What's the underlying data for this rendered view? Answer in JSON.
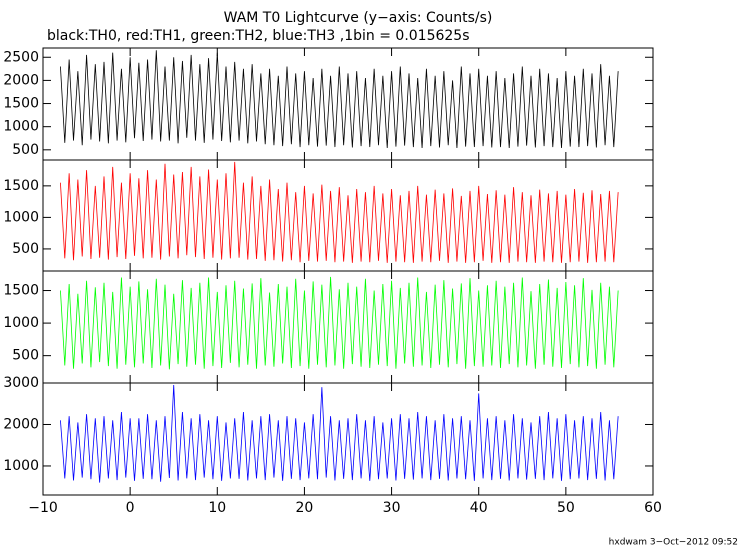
{
  "chart_data": {
    "type": "line",
    "title": "WAM T0 Lightcurve (y−axis: Counts/s)",
    "subtitle": "black:TH0, red:TH1, green:TH2, blue:TH3 ,1bin = 0.015625s",
    "footer": "hxdwam  3−Oct−2012 09:52",
    "xlim": [
      -10,
      60
    ],
    "xticks": [
      {
        "value": -10,
        "label": "−10"
      },
      0,
      10,
      20,
      30,
      40,
      50,
      60
    ],
    "x": [
      -8,
      -7.5,
      -7,
      -6.5,
      -6,
      -5.5,
      -5,
      -4.5,
      -4,
      -3.5,
      -3,
      -2.5,
      -2,
      -1.5,
      -1,
      -0.5,
      0,
      0.5,
      1,
      1.5,
      2,
      2.5,
      3,
      3.5,
      4,
      4.5,
      5,
      5.5,
      6,
      6.5,
      7,
      7.5,
      8,
      8.5,
      9,
      9.5,
      10,
      10.5,
      11,
      11.5,
      12,
      12.5,
      13,
      13.5,
      14,
      14.5,
      15,
      15.5,
      16,
      16.5,
      17,
      17.5,
      18,
      18.5,
      19,
      19.5,
      20,
      20.5,
      21,
      21.5,
      22,
      22.5,
      23,
      23.5,
      24,
      24.5,
      25,
      25.5,
      26,
      26.5,
      27,
      27.5,
      28,
      28.5,
      29,
      29.5,
      30,
      30.5,
      31,
      31.5,
      32,
      32.5,
      33,
      33.5,
      34,
      34.5,
      35,
      35.5,
      36,
      36.5,
      37,
      37.5,
      38,
      38.5,
      39,
      39.5,
      40,
      40.5,
      41,
      41.5,
      42,
      42.5,
      43,
      43.5,
      44,
      44.5,
      45,
      45.5,
      46,
      46.5,
      47,
      47.5,
      48,
      48.5,
      49,
      49.5,
      50,
      50.5,
      51,
      51.5,
      52,
      52.5,
      53,
      53.5,
      54,
      54.5,
      55,
      55.5,
      56
    ],
    "series": [
      {
        "color": "#000000",
        "ylim": [
          280,
          2700
        ],
        "yticks": [
          500,
          1000,
          1500,
          2000,
          2500
        ],
        "values": [
          2300,
          650,
          2450,
          700,
          2200,
          600,
          2550,
          720,
          2350,
          680,
          2400,
          640,
          2600,
          700,
          2250,
          660,
          2500,
          750,
          2380,
          690,
          2450,
          720,
          2650,
          680,
          2300,
          700,
          2500,
          640,
          2420,
          760,
          2550,
          700,
          2350,
          650,
          2480,
          720,
          2600,
          690,
          2300,
          660,
          2400,
          700,
          2250,
          640,
          2350,
          680,
          2150,
          620,
          2250,
          600,
          2100,
          580,
          2300,
          620,
          2150,
          560,
          2200,
          600,
          2050,
          570,
          2250,
          590,
          2100,
          560,
          2300,
          600,
          2150,
          550,
          2200,
          580,
          2050,
          560,
          2250,
          600,
          2100,
          540,
          2200,
          570,
          2300,
          590,
          2150,
          560,
          2050,
          540,
          2250,
          580,
          2100,
          550,
          2200,
          600,
          2000,
          540,
          2300,
          570,
          2150,
          560,
          2250,
          580,
          2100,
          550,
          2200,
          560,
          2050,
          540,
          2150,
          570,
          2300,
          590,
          2100,
          550,
          2250,
          580,
          2150,
          560,
          2050,
          540,
          2200,
          570,
          2100,
          560,
          2250,
          580,
          2150,
          550,
          2350,
          600,
          2100,
          560,
          2200
        ]
      },
      {
        "color": "#ff0000",
        "ylim": [
          150,
          1910
        ],
        "yticks": [
          500,
          1000,
          1500
        ],
        "values": [
          1550,
          350,
          1700,
          320,
          1600,
          380,
          1750,
          340,
          1500,
          360,
          1650,
          330,
          1800,
          370,
          1550,
          340,
          1700,
          390,
          1620,
          350,
          1750,
          360,
          1600,
          330,
          1850,
          380,
          1680,
          350,
          1720,
          400,
          1800,
          370,
          1650,
          340,
          1760,
          360,
          1600,
          330,
          1700,
          350,
          1880,
          360,
          1550,
          330,
          1650,
          340,
          1500,
          310,
          1600,
          320,
          1450,
          300,
          1550,
          320,
          1400,
          290,
          1500,
          310,
          1380,
          300,
          1520,
          310,
          1420,
          290,
          1480,
          300,
          1350,
          280,
          1450,
          300,
          1400,
          290,
          1500,
          310,
          1380,
          280,
          1450,
          300,
          1350,
          290,
          1420,
          280,
          1500,
          300,
          1360,
          290,
          1440,
          310,
          1380,
          280,
          1460,
          300,
          1340,
          280,
          1420,
          290,
          1500,
          310,
          1370,
          280,
          1430,
          290,
          1360,
          280,
          1480,
          300,
          1400,
          290,
          1350,
          280,
          1440,
          300,
          1380,
          290,
          1420,
          280,
          1360,
          290,
          1450,
          300,
          1390,
          280,
          1430,
          290,
          1370,
          300,
          1420,
          290,
          1400
        ]
      },
      {
        "color": "#00ff00",
        "ylim": [
          80,
          1800
        ],
        "yticks": [
          500,
          1000,
          1500
        ],
        "values": [
          1500,
          350,
          1600,
          300,
          1450,
          380,
          1650,
          320,
          1550,
          400,
          1620,
          340,
          1480,
          300,
          1700,
          360,
          1560,
          320,
          1640,
          380,
          1520,
          310,
          1680,
          350,
          1590,
          290,
          1450,
          370,
          1660,
          330,
          1540,
          360,
          1620,
          300,
          1700,
          340,
          1480,
          310,
          1580,
          390,
          1650,
          320,
          1530,
          360,
          1610,
          300,
          1690,
          350,
          1470,
          330,
          1600,
          380,
          1560,
          310,
          1680,
          340,
          1500,
          300,
          1640,
          360,
          1590,
          320,
          1710,
          350,
          1520,
          300,
          1620,
          370,
          1560,
          330,
          1680,
          310,
          1500,
          360,
          1600,
          340,
          1650,
          300,
          1540,
          380,
          1620,
          330,
          1700,
          350,
          1480,
          310,
          1590,
          360,
          1660,
          320,
          1530,
          370,
          1610,
          300,
          1690,
          340,
          1500,
          330,
          1580,
          350,
          1650,
          310,
          1560,
          370,
          1620,
          320,
          1700,
          350,
          1490,
          300,
          1600,
          360,
          1670,
          330,
          1540,
          310,
          1630,
          370,
          1580,
          320,
          1690,
          340,
          1510,
          300,
          1620,
          360,
          1560,
          320,
          1500
        ]
      },
      {
        "color": "#0000ff",
        "ylim": [
          300,
          3000
        ],
        "yticks": [
          1000,
          2000,
          3000
        ],
        "values": [
          2100,
          700,
          2200,
          650,
          2050,
          720,
          2250,
          680,
          2150,
          600,
          2200,
          700,
          2100,
          660,
          2300,
          720,
          2150,
          640,
          2150,
          690,
          2250,
          680,
          2100,
          620,
          2200,
          710,
          2950,
          650,
          2300,
          700,
          2150,
          660,
          2250,
          720,
          2100,
          680,
          2200,
          640,
          2050,
          700,
          2150,
          690,
          2300,
          650,
          2100,
          700,
          2200,
          660,
          2250,
          720,
          2100,
          640,
          2200,
          690,
          2150,
          660,
          2050,
          700,
          2250,
          680,
          2900,
          720,
          2200,
          650,
          2100,
          690,
          2150,
          660,
          2250,
          700,
          2100,
          640,
          2200,
          680,
          2050,
          700,
          2150,
          650,
          2250,
          690,
          2150,
          670,
          2300,
          700,
          2200,
          660,
          2100,
          690,
          2250,
          650,
          2150,
          700,
          2200,
          680,
          2100,
          640,
          2750,
          700,
          2150,
          660,
          2200,
          690,
          2100,
          650,
          2250,
          700,
          2150,
          670,
          2050,
          690,
          2200,
          660,
          2300,
          700,
          2150,
          640,
          2250,
          680,
          2100,
          700,
          2200,
          660,
          2150,
          690,
          2300,
          650,
          2100,
          680,
          2200
        ]
      }
    ]
  }
}
